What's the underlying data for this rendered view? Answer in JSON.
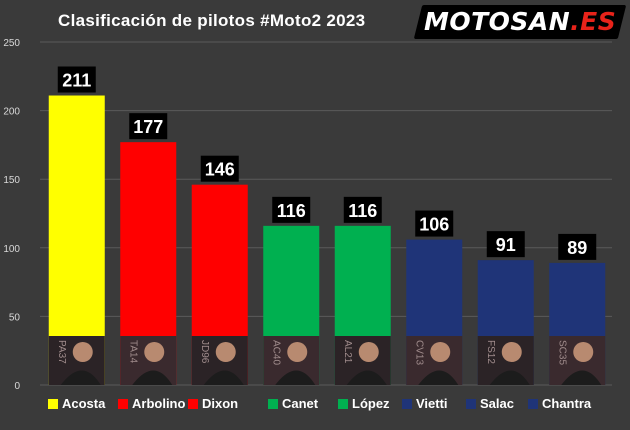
{
  "title": "Clasificación de pilotos #Moto2 2023",
  "logo": {
    "main": "MOTOSAN",
    "tld": ".ES"
  },
  "colors": {
    "background": "#3a3a3a",
    "gridline": "#5a5a5a",
    "axis_text": "#d9d9d9",
    "label_box": "#000000",
    "label_text": "#ffffff"
  },
  "chart_data": {
    "type": "bar",
    "title": "Clasificación de pilotos #Moto2 2023",
    "categories": [
      "Acosta",
      "Arbolino",
      "Dixon",
      "Canet",
      "López",
      "Vietti",
      "Salac",
      "Chantra"
    ],
    "values": [
      211,
      177,
      146,
      116,
      116,
      106,
      91,
      89
    ],
    "bar_colors": [
      "#ffff00",
      "#ff0000",
      "#ff0000",
      "#00b050",
      "#00b050",
      "#1f3478",
      "#1f3478",
      "#1f3478"
    ],
    "rider_numbers": [
      "PA37",
      "TA14",
      "JD96",
      "AC40",
      "AL21",
      "CV13",
      "FS12",
      "SC35"
    ],
    "ylim": [
      0,
      250
    ],
    "yticks": [
      0,
      50,
      100,
      150,
      200,
      250
    ],
    "data_labels": true,
    "grid": true,
    "legend": "bottom",
    "xlabel": "",
    "ylabel": ""
  }
}
